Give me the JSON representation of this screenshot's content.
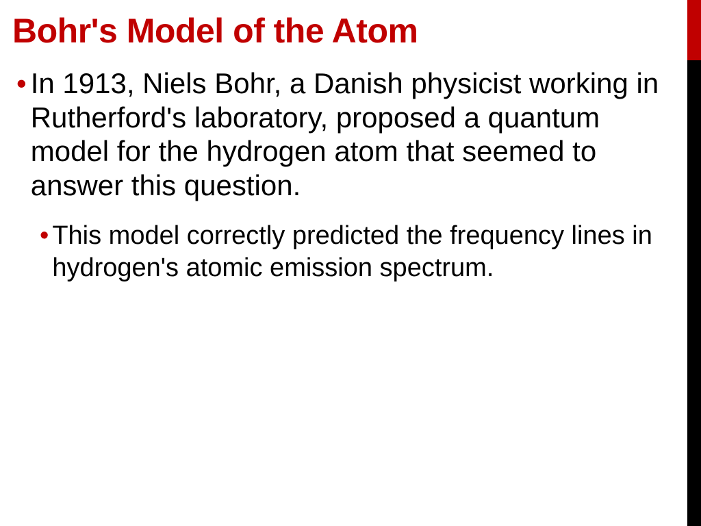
{
  "slide": {
    "title": "Bohr's Model of the Atom",
    "title_color": "#c00000",
    "title_fontsize": 50,
    "title_fontweight": 900,
    "background_color": "#ffffff",
    "accent_bar": {
      "top_color": "#c00000",
      "top_height": 88,
      "bottom_color": "#000000",
      "width": 20
    },
    "bullets": [
      {
        "level": 1,
        "marker_color": "#c00000",
        "text_color": "#000000",
        "fontsize": 42,
        "text": "In 1913, Niels Bohr, a Danish physicist working in Rutherford's laboratory, proposed a quantum model for the hydrogen atom that seemed to answer this question."
      },
      {
        "level": 2,
        "marker_color": "#c00000",
        "text_color": "#000000",
        "fontsize": 38,
        "text": "This model correctly predicted the frequency lines in hydrogen's atomic emission spectrum."
      }
    ]
  }
}
